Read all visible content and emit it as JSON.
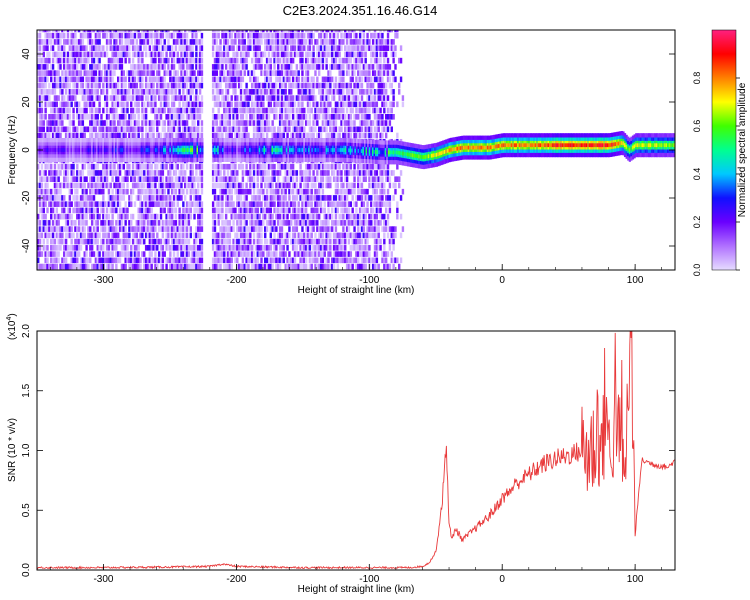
{
  "figure_title": "C2E3.2024.351.16.46.G14",
  "chart_data": [
    {
      "type": "heatmap",
      "title": "",
      "xlabel": "Height of straight line (km)",
      "ylabel": "Frequency (Hz)",
      "xlim": [
        -350,
        130
      ],
      "ylim": [
        -50,
        50
      ],
      "xticks": [
        -300,
        -200,
        -100,
        0,
        100
      ],
      "yticks": [
        -40,
        -20,
        0,
        20,
        40
      ],
      "xtick_labels": [
        "-300",
        "-200",
        "-100",
        "0",
        "100"
      ],
      "ytick_labels": [
        "-40",
        "-20",
        "0",
        "20",
        "40"
      ],
      "colorbar": {
        "label": "Normalized spectral amplitude",
        "range": [
          0,
          1
        ],
        "ticks": [
          0.0,
          0.2,
          0.4,
          0.6,
          0.8
        ],
        "tick_labels": [
          "0.0",
          "0.2",
          "0.4",
          "0.6",
          "0.8"
        ],
        "colormap": "rainbow",
        "stops": [
          "#e6dcff",
          "#b070ff",
          "#6a00ff",
          "#1010ff",
          "#00c8ff",
          "#00ff90",
          "#40ff00",
          "#ffff00",
          "#ff8000",
          "#ff0000",
          "#ff2080"
        ]
      },
      "noise_region": {
        "x_range": [
          -350,
          -75
        ],
        "typical_amplitude": 0.15
      },
      "data_gap": {
        "x_range": [
          -226,
          -219
        ]
      },
      "signal_track": {
        "x": [
          -350,
          -300,
          -260,
          -230,
          -200,
          -180,
          -150,
          -120,
          -90,
          -80,
          -70,
          -60,
          -50,
          -40,
          -30,
          -20,
          -10,
          0,
          20,
          40,
          60,
          80,
          90,
          95,
          100,
          130
        ],
        "center_hz": [
          0,
          0,
          0,
          0,
          0,
          0,
          0,
          0,
          -1,
          -1,
          -2,
          -3,
          -2,
          0,
          1,
          1,
          1,
          2,
          2,
          2,
          2,
          2,
          3,
          0,
          2,
          2
        ],
        "peak_amplitude": [
          0.18,
          0.22,
          0.28,
          0.55,
          0.2,
          0.45,
          0.3,
          0.38,
          0.42,
          0.55,
          0.6,
          0.62,
          0.72,
          0.78,
          0.82,
          0.84,
          0.8,
          0.82,
          0.82,
          0.9,
          0.92,
          0.92,
          0.75,
          0.6,
          0.7,
          0.65
        ]
      }
    },
    {
      "type": "line",
      "title": "",
      "xlabel": "Height of straight line (km)",
      "ylabel": "SNR (10 * v/v)",
      "scale_label_base": "(x10",
      "scale_label_exp": "4",
      "scale_label_close": ")",
      "xlim": [
        -350,
        130
      ],
      "ylim": [
        0,
        2.0
      ],
      "xticks": [
        -300,
        -200,
        -100,
        0,
        100
      ],
      "yticks": [
        0.0,
        0.5,
        1.0,
        1.5,
        2.0
      ],
      "xtick_labels": [
        "-300",
        "-200",
        "-100",
        "0",
        "100"
      ],
      "ytick_labels": [
        "0.0",
        "0.5",
        "1.0",
        "1.5",
        "2.0"
      ],
      "series": [
        {
          "color": "#e8393a",
          "x": [
            -350,
            -300,
            -250,
            -220,
            -210,
            -200,
            -150,
            -100,
            -70,
            -60,
            -55,
            -50,
            -47,
            -45,
            -42,
            -40,
            -38,
            -35,
            -30,
            -25,
            -20,
            -15,
            -10,
            -5,
            0,
            5,
            10,
            20,
            30,
            40,
            50,
            55,
            60,
            65,
            70,
            72,
            75,
            78,
            80,
            82,
            85,
            88,
            90,
            92,
            95,
            97,
            100,
            105,
            110,
            115,
            120,
            125,
            130
          ],
          "y": [
            0.02,
            0.02,
            0.025,
            0.03,
            0.05,
            0.03,
            0.02,
            0.02,
            0.02,
            0.03,
            0.06,
            0.15,
            0.4,
            0.6,
            1.05,
            0.4,
            0.25,
            0.35,
            0.25,
            0.3,
            0.35,
            0.4,
            0.45,
            0.52,
            0.6,
            0.65,
            0.72,
            0.8,
            0.88,
            0.93,
            0.96,
            0.98,
            1.0,
            0.97,
            1.05,
            1.25,
            0.95,
            1.55,
            1.0,
            0.85,
            1.6,
            0.95,
            1.3,
            0.6,
            1.55,
            2.0,
            0.3,
            0.92,
            0.9,
            0.88,
            0.87,
            0.86,
            0.92
          ]
        }
      ]
    }
  ]
}
